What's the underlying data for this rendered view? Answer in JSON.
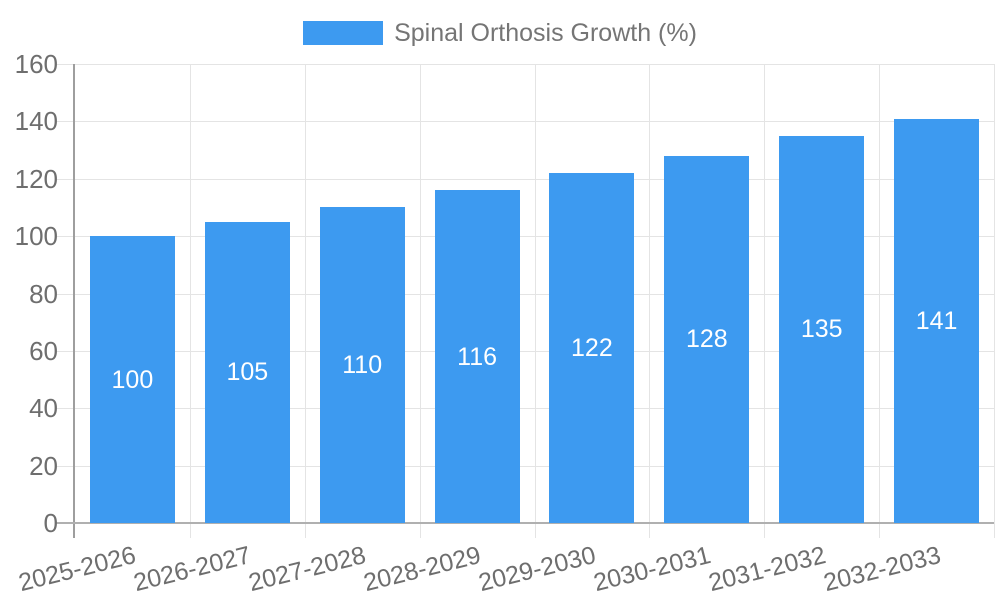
{
  "chart_data": {
    "type": "bar",
    "title": "",
    "categories": [
      "2025-2026",
      "2026-2027",
      "2027-2028",
      "2028-2029",
      "2029-2030",
      "2030-2031",
      "2031-2032",
      "2032-2033"
    ],
    "series": [
      {
        "name": "Spinal Orthosis Growth (%)",
        "values": [
          100,
          105,
          110,
          116,
          122,
          128,
          135,
          141
        ]
      }
    ],
    "bar_value_labels": [
      "100",
      "105",
      "110",
      "116",
      "122",
      "128",
      "135",
      "141"
    ],
    "xlabel": "",
    "ylabel": "",
    "ylim": [
      0,
      160
    ],
    "ytick_step": 20,
    "yticks": [
      "0",
      "20",
      "40",
      "60",
      "80",
      "100",
      "120",
      "140",
      "160"
    ],
    "grid": true,
    "legend_position": "top",
    "x_label_rotation_deg": -14,
    "colors": {
      "bar": "#3D9AF0",
      "bar_label_text": "#FFFFFF",
      "gridline": "#E4E4E4",
      "y_axis_line": "#9E9E9E",
      "baseline": "#B0B0B0",
      "axis_text": "#6E6E6E",
      "legend_text": "#757575"
    }
  }
}
